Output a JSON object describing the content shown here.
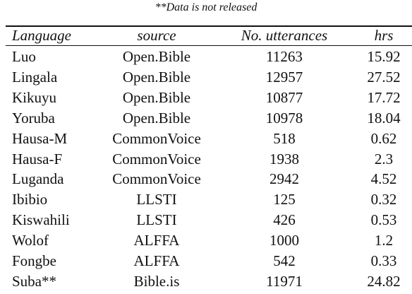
{
  "caption": "**Data is not released",
  "table": {
    "header": [
      "Language",
      "source",
      "No. utterances",
      "hrs"
    ],
    "rows": [
      [
        "Luo",
        "Open.Bible",
        "11263",
        "15.92"
      ],
      [
        "Lingala",
        "Open.Bible",
        "12957",
        "27.52"
      ],
      [
        "Kikuyu",
        "Open.Bible",
        "10877",
        "17.72"
      ],
      [
        "Yoruba",
        "Open.Bible",
        "10978",
        "18.04"
      ],
      [
        "Hausa-M",
        "CommonVoice",
        "518",
        "0.62"
      ],
      [
        "Hausa-F",
        "CommonVoice",
        "1938",
        "2.3"
      ],
      [
        "Luganda",
        "CommonVoice",
        "2942",
        "4.52"
      ],
      [
        "Ibibio",
        "LLSTI",
        "125",
        "0.32"
      ],
      [
        "Kiswahili",
        "LLSTI",
        "426",
        "0.53"
      ],
      [
        "Wolof",
        "ALFFA",
        "1000",
        "1.2"
      ],
      [
        "Fongbe",
        "ALFFA",
        "542",
        "0.33"
      ],
      [
        "Suba**",
        "Bible.is",
        "11971",
        "24.82"
      ]
    ]
  }
}
